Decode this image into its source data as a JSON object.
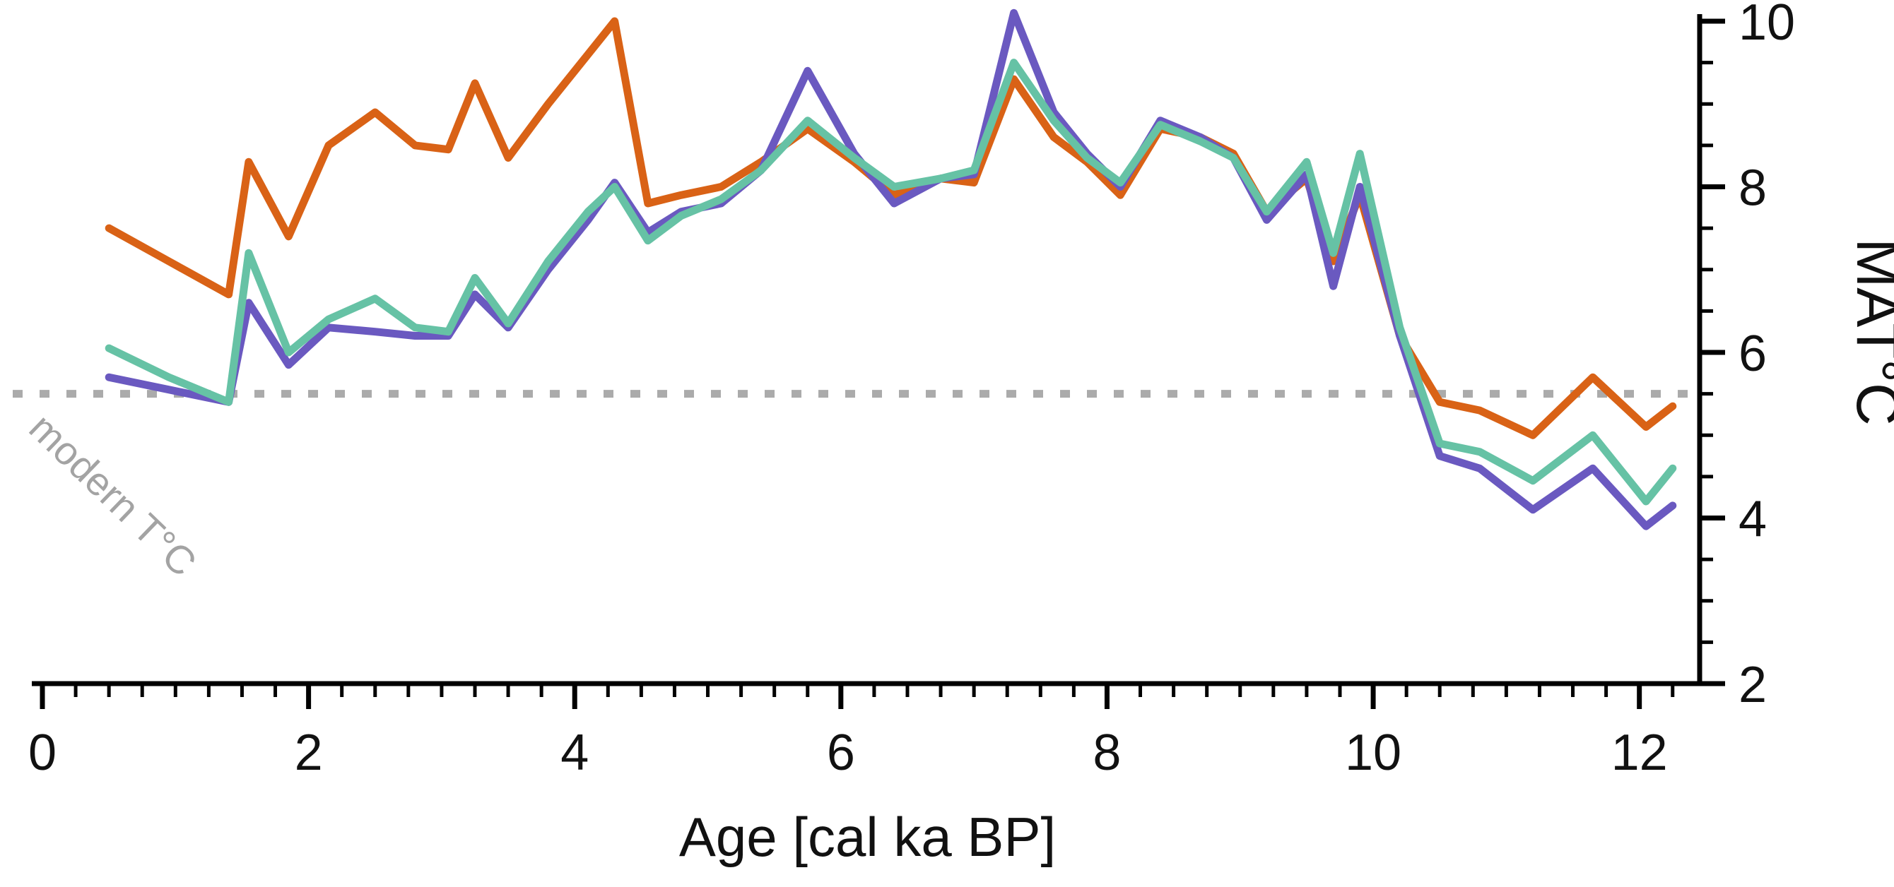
{
  "chart_data": {
    "type": "line",
    "title": "",
    "xlabel": "Age [cal ka BP]",
    "ylabel": "MAT°C",
    "xlim": [
      0,
      12.4
    ],
    "ylim": [
      2,
      10
    ],
    "x_ticks": [
      0,
      2,
      4,
      6,
      8,
      10,
      12
    ],
    "x_minor_step": 0.25,
    "y_ticks": [
      2,
      4,
      6,
      8,
      10
    ],
    "y_minor_step": 0.5,
    "grid": false,
    "legend_position": "none",
    "axis_color": "#000000",
    "reference_line": {
      "y": 5.5,
      "label": "modern T°C",
      "color": "#ababab",
      "label_color": "#a3a3a3",
      "style": "dotted"
    },
    "x": [
      0.5,
      0.95,
      1.4,
      1.55,
      1.85,
      2.15,
      2.5,
      2.8,
      3.05,
      3.25,
      3.5,
      3.8,
      4.1,
      4.3,
      4.55,
      4.8,
      5.1,
      5.4,
      5.75,
      6.1,
      6.4,
      6.75,
      7.0,
      7.3,
      7.6,
      7.85,
      8.1,
      8.4,
      8.7,
      8.95,
      9.2,
      9.5,
      9.7,
      9.9,
      10.2,
      10.5,
      10.8,
      11.2,
      11.65,
      12.05,
      12.25
    ],
    "series": [
      {
        "name": "orange",
        "color": "#d96216",
        "values": [
          7.5,
          7.1,
          6.7,
          8.3,
          7.4,
          8.5,
          8.9,
          8.5,
          8.45,
          9.25,
          8.35,
          9.0,
          9.6,
          10.0,
          7.8,
          7.9,
          8.0,
          8.3,
          8.7,
          8.3,
          7.9,
          8.1,
          8.05,
          9.3,
          8.6,
          8.3,
          7.9,
          8.7,
          8.6,
          8.4,
          7.7,
          8.1,
          7.1,
          7.9,
          6.2,
          5.4,
          5.3,
          5.0,
          5.7,
          5.1,
          5.35
        ]
      },
      {
        "name": "purple",
        "color": "#6a59c0",
        "values": [
          5.7,
          5.55,
          5.4,
          6.6,
          5.85,
          6.3,
          6.25,
          6.2,
          6.2,
          6.7,
          6.3,
          7.0,
          7.6,
          8.05,
          7.45,
          7.7,
          7.8,
          8.2,
          9.4,
          8.4,
          7.8,
          8.1,
          8.15,
          10.1,
          8.9,
          8.4,
          8.0,
          8.8,
          8.6,
          8.35,
          7.6,
          8.15,
          6.8,
          8.0,
          6.2,
          4.75,
          4.6,
          4.1,
          4.6,
          3.9,
          4.15
        ]
      },
      {
        "name": "teal",
        "color": "#66c2a5",
        "values": [
          6.05,
          5.7,
          5.4,
          7.2,
          6.0,
          6.4,
          6.65,
          6.3,
          6.25,
          6.9,
          6.35,
          7.1,
          7.7,
          8.0,
          7.35,
          7.65,
          7.85,
          8.2,
          8.8,
          8.35,
          8.0,
          8.1,
          8.2,
          9.5,
          8.8,
          8.35,
          8.05,
          8.75,
          8.55,
          8.35,
          7.7,
          8.3,
          7.2,
          8.4,
          6.3,
          4.9,
          4.8,
          4.45,
          5.0,
          4.2,
          4.6
        ]
      }
    ]
  }
}
